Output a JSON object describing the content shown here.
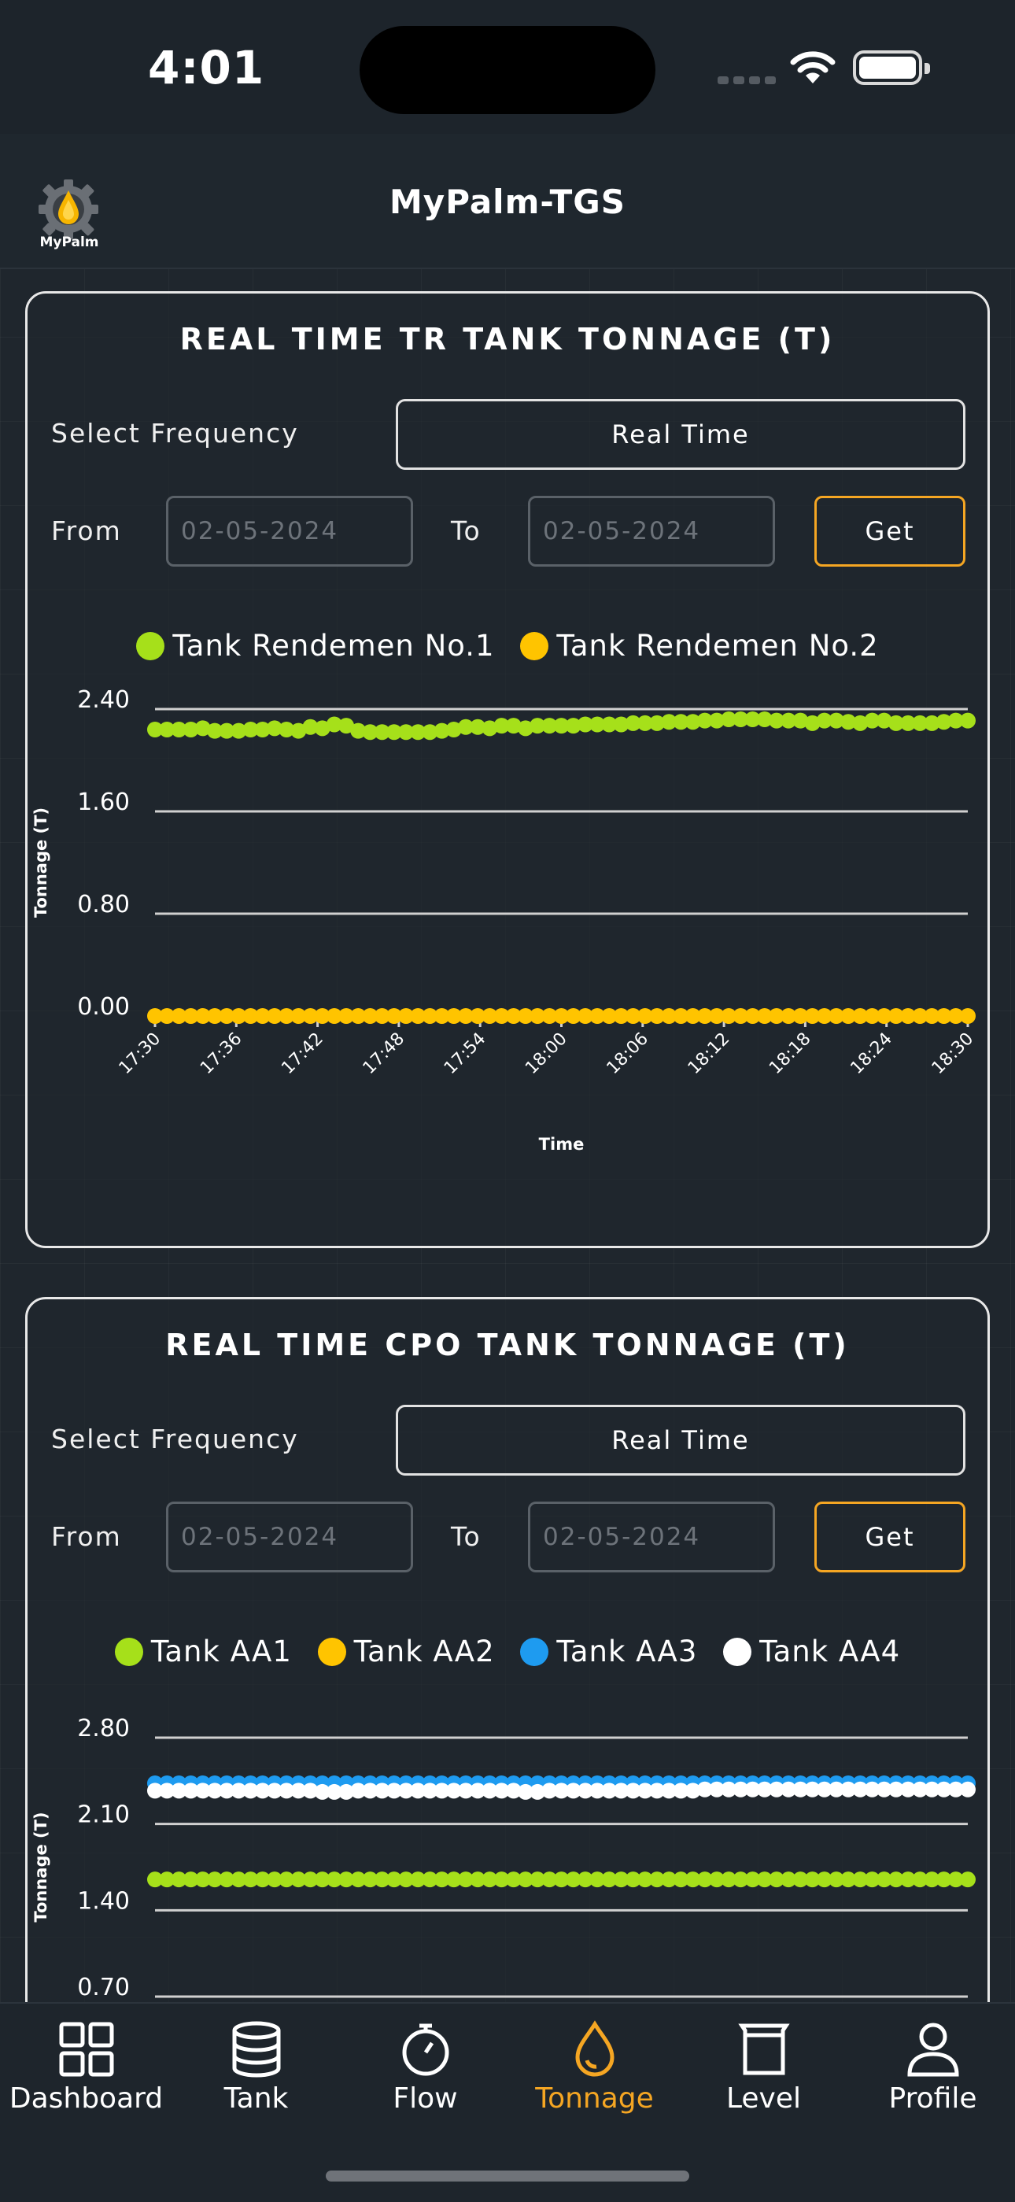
{
  "status_bar": {
    "time": "4:01"
  },
  "header": {
    "logo_text": "MyPalm",
    "title": "MyPalm-TGS"
  },
  "colors": {
    "accent": "#f5a623",
    "green": "#a6e01a",
    "yellow": "#ffc400",
    "blue": "#1e9bf0",
    "white": "#ffffff"
  },
  "cards": [
    {
      "title": "REAL TIME TR TANK TONNAGE (T)",
      "frequency_label": "Select Frequency",
      "frequency_value": "Real Time",
      "from_label": "From",
      "from_value": "02-05-2024",
      "to_label": "To",
      "to_value": "02-05-2024",
      "get_label": "Get"
    },
    {
      "title": "REAL TIME CPO TANK TONNAGE (T)",
      "frequency_label": "Select Frequency",
      "frequency_value": "Real Time",
      "from_label": "From",
      "from_value": "02-05-2024",
      "to_label": "To",
      "to_value": "02-05-2024",
      "get_label": "Get"
    }
  ],
  "chart_data": [
    {
      "type": "scatter",
      "xlabel": "Time",
      "ylabel": "Tonnage (T)",
      "yticks": [
        "0.00",
        "0.80",
        "1.60",
        "2.40"
      ],
      "ylim": [
        0,
        2.4
      ],
      "xticks": [
        "17:30",
        "17:36",
        "17:42",
        "17:48",
        "17:54",
        "18:00",
        "18:06",
        "18:12",
        "18:18",
        "18:24",
        "18:30"
      ],
      "legend_position": "top",
      "series": [
        {
          "name": "Tank Rendemen No.1",
          "color": "#a6e01a",
          "values": [
            2.24,
            2.24,
            2.24,
            2.24,
            2.25,
            2.23,
            2.23,
            2.23,
            2.24,
            2.24,
            2.25,
            2.24,
            2.23,
            2.26,
            2.25,
            2.28,
            2.27,
            2.23,
            2.22,
            2.22,
            2.22,
            2.22,
            2.22,
            2.22,
            2.23,
            2.24,
            2.26,
            2.26,
            2.25,
            2.27,
            2.27,
            2.25,
            2.27,
            2.27,
            2.27,
            2.27,
            2.28,
            2.28,
            2.28,
            2.28,
            2.29,
            2.29,
            2.29,
            2.3,
            2.3,
            2.3,
            2.31,
            2.31,
            2.32,
            2.32,
            2.32,
            2.32,
            2.31,
            2.31,
            2.31,
            2.29,
            2.31,
            2.31,
            2.3,
            2.29,
            2.31,
            2.31,
            2.29,
            2.29,
            2.29,
            2.29,
            2.3,
            2.31,
            2.31
          ]
        },
        {
          "name": "Tank Rendemen No.2",
          "color": "#ffc400",
          "values": [
            0,
            0,
            0,
            0,
            0,
            0,
            0,
            0,
            0,
            0,
            0,
            0,
            0,
            0,
            0,
            0,
            0,
            0,
            0,
            0,
            0,
            0,
            0,
            0,
            0,
            0,
            0,
            0,
            0,
            0,
            0,
            0,
            0,
            0,
            0,
            0,
            0,
            0,
            0,
            0,
            0,
            0,
            0,
            0,
            0,
            0,
            0,
            0,
            0,
            0,
            0,
            0,
            0,
            0,
            0,
            0,
            0,
            0,
            0,
            0,
            0,
            0,
            0,
            0,
            0,
            0,
            0,
            0,
            0
          ]
        }
      ]
    },
    {
      "type": "scatter",
      "ylabel": "Tonnage (T)",
      "yticks": [
        "0.70",
        "1.40",
        "2.10",
        "2.80"
      ],
      "ylim": [
        0.7,
        2.8
      ],
      "legend_position": "top",
      "series": [
        {
          "name": "Tank AA1",
          "color": "#a6e01a",
          "values": [
            1.65,
            1.65,
            1.65,
            1.65,
            1.65,
            1.65,
            1.65,
            1.65,
            1.65,
            1.65,
            1.65,
            1.65,
            1.65,
            1.65,
            1.65,
            1.65,
            1.65,
            1.65,
            1.65,
            1.65,
            1.65,
            1.65,
            1.65,
            1.65,
            1.65,
            1.65,
            1.65,
            1.65,
            1.65,
            1.65,
            1.65,
            1.65,
            1.65,
            1.65,
            1.65,
            1.65,
            1.65,
            1.65,
            1.65,
            1.65,
            1.65,
            1.65,
            1.65,
            1.65,
            1.65,
            1.65,
            1.65,
            1.65,
            1.65,
            1.65,
            1.65,
            1.65,
            1.65,
            1.65,
            1.65,
            1.65,
            1.65,
            1.65,
            1.65,
            1.65,
            1.65,
            1.65,
            1.65,
            1.65,
            1.65,
            1.65,
            1.65,
            1.65,
            1.65
          ]
        },
        {
          "name": "Tank AA2",
          "color": "#ffc400",
          "values": []
        },
        {
          "name": "Tank AA3",
          "color": "#1e9bf0",
          "values": [
            2.43,
            2.43,
            2.43,
            2.43,
            2.43,
            2.43,
            2.43,
            2.43,
            2.43,
            2.43,
            2.43,
            2.43,
            2.43,
            2.43,
            2.43,
            2.43,
            2.43,
            2.43,
            2.43,
            2.43,
            2.43,
            2.43,
            2.43,
            2.43,
            2.43,
            2.43,
            2.43,
            2.43,
            2.43,
            2.43,
            2.43,
            2.43,
            2.43,
            2.43,
            2.43,
            2.43,
            2.43,
            2.43,
            2.43,
            2.43,
            2.43,
            2.43,
            2.43,
            2.43,
            2.43,
            2.43,
            2.43,
            2.43,
            2.43,
            2.43,
            2.43,
            2.43,
            2.43,
            2.43,
            2.43,
            2.43,
            2.43,
            2.43,
            2.43,
            2.43,
            2.43,
            2.43,
            2.43,
            2.43,
            2.43,
            2.43,
            2.43,
            2.43,
            2.43
          ]
        },
        {
          "name": "Tank AA4",
          "color": "#ffffff",
          "values": [
            2.37,
            2.37,
            2.37,
            2.37,
            2.37,
            2.37,
            2.37,
            2.37,
            2.37,
            2.37,
            2.37,
            2.37,
            2.37,
            2.37,
            2.36,
            2.36,
            2.36,
            2.37,
            2.37,
            2.37,
            2.37,
            2.37,
            2.37,
            2.37,
            2.37,
            2.37,
            2.37,
            2.37,
            2.37,
            2.37,
            2.37,
            2.36,
            2.36,
            2.37,
            2.37,
            2.37,
            2.37,
            2.37,
            2.37,
            2.37,
            2.37,
            2.37,
            2.37,
            2.37,
            2.37,
            2.37,
            2.38,
            2.38,
            2.38,
            2.38,
            2.38,
            2.38,
            2.38,
            2.38,
            2.38,
            2.38,
            2.38,
            2.38,
            2.38,
            2.38,
            2.38,
            2.38,
            2.38,
            2.38,
            2.38,
            2.38,
            2.38,
            2.38,
            2.38
          ]
        }
      ]
    }
  ],
  "tab_bar": {
    "items": [
      {
        "label": "Dashboard",
        "icon": "grid-icon"
      },
      {
        "label": "Tank",
        "icon": "database-icon"
      },
      {
        "label": "Flow",
        "icon": "stopwatch-icon"
      },
      {
        "label": "Tonnage",
        "icon": "droplet-icon"
      },
      {
        "label": "Level",
        "icon": "beaker-icon"
      },
      {
        "label": "Profile",
        "icon": "user-icon"
      }
    ]
  }
}
